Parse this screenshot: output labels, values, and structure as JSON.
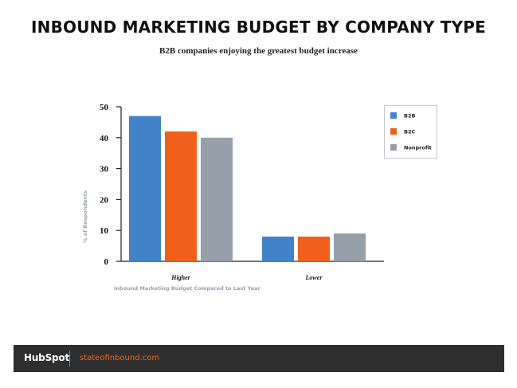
{
  "chart_data": {
    "type": "bar",
    "title": "INBOUND MARKETING BUDGET BY COMPANY TYPE",
    "subtitle": "B2B companies enjoying the greatest budget increase",
    "xlabel": "Inbound Marketing Budget Compared to Last Year",
    "ylabel": "% of Respondents",
    "categories": [
      "Higher",
      "Lower"
    ],
    "series": [
      {
        "name": "B2B",
        "color": "#4282c8",
        "values": [
          47,
          8
        ]
      },
      {
        "name": "B2C",
        "color": "#f0601c",
        "values": [
          42,
          8
        ]
      },
      {
        "name": "Nonprofit",
        "color": "#979faa",
        "values": [
          40,
          9
        ]
      }
    ],
    "ylim": [
      0,
      50
    ],
    "yticks": [
      0,
      10,
      20,
      30,
      40,
      50
    ],
    "grid": false,
    "legend_position": "top-right"
  },
  "footer": {
    "brand": "HubSpot",
    "link": "stateofinbound.com",
    "accent_color": "#f26522"
  }
}
